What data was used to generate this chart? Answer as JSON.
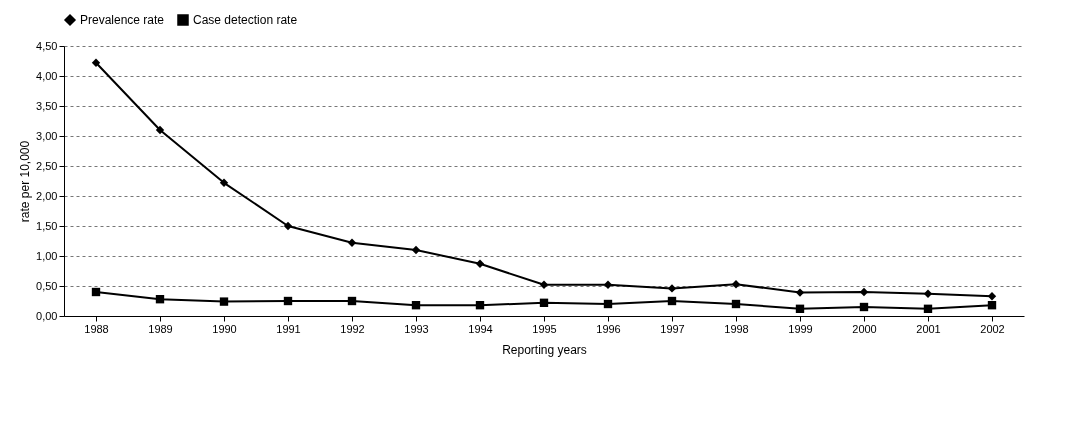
{
  "chart_data": {
    "type": "line",
    "xlabel": "Reporting years",
    "ylabel": "rate per 10,000",
    "categories": [
      "1988",
      "1989",
      "1990",
      "1991",
      "1992",
      "1993",
      "1994",
      "1995",
      "1996",
      "1997",
      "1998",
      "1999",
      "2000",
      "2001",
      "2002"
    ],
    "series": [
      {
        "name": "Prevalence rate",
        "color": "#000000",
        "marker": "diamond",
        "values": [
          4.22,
          3.1,
          2.22,
          1.5,
          1.22,
          1.1,
          0.87,
          0.52,
          0.52,
          0.46,
          0.53,
          0.39,
          0.4,
          0.37,
          0.33
        ]
      },
      {
        "name": "Case detection rate",
        "color": "#000000",
        "marker": "square",
        "values": [
          0.4,
          0.28,
          0.24,
          0.25,
          0.25,
          0.18,
          0.18,
          0.22,
          0.2,
          0.25,
          0.2,
          0.12,
          0.15,
          0.12,
          0.18
        ]
      }
    ],
    "ylim": [
      0,
      4.5
    ],
    "yticks": [
      {
        "value": 0,
        "label": "0,00"
      },
      {
        "value": 0.5,
        "label": "0,50"
      },
      {
        "value": 1,
        "label": "1,00"
      },
      {
        "value": 1.5,
        "label": "1,50"
      },
      {
        "value": 2,
        "label": "2,00"
      },
      {
        "value": 2.5,
        "label": "2,50"
      },
      {
        "value": 3,
        "label": "3,00"
      },
      {
        "value": 3.5,
        "label": "3,50"
      },
      {
        "value": 4,
        "label": "4,00"
      },
      {
        "value": 4.5,
        "label": "4,50"
      }
    ],
    "grid": "y",
    "legend": "top",
    "line_style": "solid"
  }
}
